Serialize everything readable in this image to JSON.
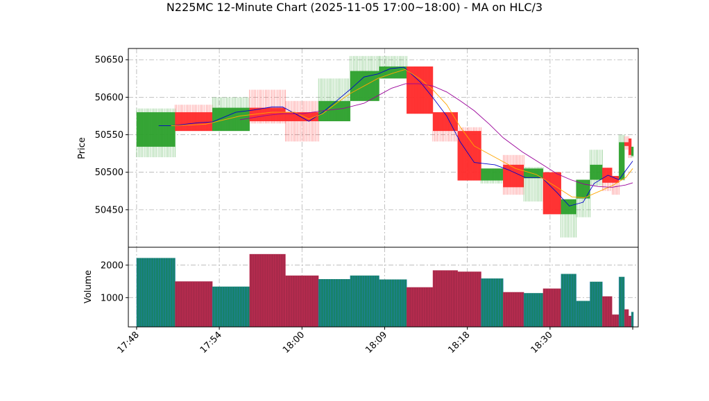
{
  "chart_data": {
    "type": "candlestick",
    "title": "N225MC 12-Minute Chart (2025-11-05 17:00~18:00) - MA on HLC/3",
    "price_axis": {
      "label": "Price",
      "ylim": [
        50400,
        50665
      ],
      "ticks": [
        50450,
        50500,
        50550,
        50600,
        50650
      ]
    },
    "volume_axis": {
      "label": "Volume",
      "ylim": [
        100,
        2550
      ],
      "ticks": [
        1000,
        2000
      ]
    },
    "x_axis": {
      "tick_labels": [
        "17:48",
        "17:54",
        "18:00",
        "18:09",
        "18:18",
        "18:30"
      ],
      "tick_positions": [
        0,
        6,
        12,
        18,
        24,
        30
      ],
      "xlim": [
        -0.6,
        36.4
      ]
    },
    "grid": true,
    "colors": {
      "up": "#2ca02c",
      "down": "#ff2a2a",
      "ma_fast": "#0000cc",
      "ma_mid": "#ffa500",
      "ma_slow": "#990099",
      "vol_up": "#17826a",
      "vol_down": "#a8294a"
    },
    "candles": [
      {
        "x": 0.0,
        "w": 2.8,
        "open": 50534,
        "close": 50580,
        "high": 50585,
        "low": 50520
      },
      {
        "x": 2.8,
        "w": 2.7,
        "open": 50580,
        "close": 50555,
        "high": 50590,
        "low": 50555
      },
      {
        "x": 5.5,
        "w": 2.7,
        "open": 50555,
        "close": 50586,
        "high": 50600,
        "low": 50555
      },
      {
        "x": 8.2,
        "w": 2.6,
        "open": 50586,
        "close": 50568,
        "high": 50610,
        "low": 50565
      },
      {
        "x": 10.8,
        "w": 2.4,
        "open": 50580,
        "close": 50568,
        "high": 50595,
        "low": 50541
      },
      {
        "x": 13.2,
        "w": 2.3,
        "open": 50568,
        "close": 50595,
        "high": 50625,
        "low": 50568
      },
      {
        "x": 15.5,
        "w": 2.1,
        "open": 50595,
        "close": 50635,
        "high": 50655,
        "low": 50595
      },
      {
        "x": 17.6,
        "w": 2.0,
        "open": 50625,
        "close": 50641,
        "high": 50655,
        "low": 50625
      },
      {
        "x": 19.6,
        "w": 1.9,
        "open": 50641,
        "close": 50578,
        "high": 50641,
        "low": 50578
      },
      {
        "x": 21.5,
        "w": 1.8,
        "open": 50580,
        "close": 50555,
        "high": 50580,
        "low": 50541
      },
      {
        "x": 23.3,
        "w": 1.7,
        "open": 50555,
        "close": 50489,
        "high": 50560,
        "low": 50489
      },
      {
        "x": 25.0,
        "w": 1.6,
        "open": 50489,
        "close": 50505,
        "high": 50505,
        "low": 50485
      },
      {
        "x": 26.6,
        "w": 1.5,
        "open": 50510,
        "close": 50480,
        "high": 50523,
        "low": 50470
      },
      {
        "x": 28.1,
        "w": 1.4,
        "open": 50492,
        "close": 50505,
        "high": 50507,
        "low": 50461
      },
      {
        "x": 29.5,
        "w": 1.3,
        "open": 50500,
        "close": 50444,
        "high": 50500,
        "low": 50444
      },
      {
        "x": 30.8,
        "w": 1.1,
        "open": 50444,
        "close": 50464,
        "high": 50464,
        "low": 50413
      },
      {
        "x": 31.9,
        "w": 1.0,
        "open": 50465,
        "close": 50490,
        "high": 50490,
        "low": 50440
      },
      {
        "x": 32.9,
        "w": 0.9,
        "open": 50490,
        "close": 50510,
        "high": 50530,
        "low": 50482
      },
      {
        "x": 33.8,
        "w": 0.7,
        "open": 50506,
        "close": 50486,
        "high": 50506,
        "low": 50475
      },
      {
        "x": 34.5,
        "w": 0.5,
        "open": 50495,
        "close": 50486,
        "high": 50495,
        "low": 50470
      },
      {
        "x": 35.0,
        "w": 0.4,
        "open": 50490,
        "close": 50540,
        "high": 50550,
        "low": 50489
      },
      {
        "x": 35.4,
        "w": 0.3,
        "open": 50540,
        "close": 50535,
        "high": 50548,
        "low": 50530
      },
      {
        "x": 35.7,
        "w": 0.2,
        "open": 50545,
        "close": 50523,
        "high": 50545,
        "low": 50519
      },
      {
        "x": 35.9,
        "w": 0.15,
        "open": 50522,
        "close": 50534,
        "high": 50534,
        "low": 50520
      }
    ],
    "volume": [
      2220,
      1500,
      1340,
      2340,
      1680,
      1570,
      1680,
      1560,
      1320,
      1840,
      1800,
      1590,
      1170,
      1140,
      1280,
      1730,
      900,
      1490,
      1040,
      480,
      1640,
      640,
      440,
      560
    ],
    "ma_series": [
      {
        "color": "#0000cc",
        "points": [
          [
            1.6,
            50562
          ],
          [
            2.5,
            50562
          ],
          [
            3.5,
            50564
          ],
          [
            4.5,
            50566
          ],
          [
            5.5,
            50567
          ],
          [
            7.2,
            50580
          ],
          [
            8.5,
            50583
          ],
          [
            9.8,
            50587
          ],
          [
            10.6,
            50587
          ],
          [
            11.5,
            50578
          ],
          [
            12.5,
            50568
          ],
          [
            13.5,
            50580
          ],
          [
            14.5,
            50595
          ],
          [
            15.6,
            50612
          ],
          [
            16.5,
            50627
          ],
          [
            17.5,
            50631
          ],
          [
            18.4,
            50638
          ],
          [
            19.4,
            50640
          ],
          [
            20.6,
            50620
          ],
          [
            21.6,
            50597
          ],
          [
            22.5,
            50575
          ],
          [
            23.5,
            50540
          ],
          [
            24.5,
            50513
          ],
          [
            26.0,
            50510
          ],
          [
            27.0,
            50503
          ],
          [
            28.2,
            50493
          ],
          [
            29.4,
            50493
          ],
          [
            30.5,
            50473
          ],
          [
            31.4,
            50455
          ],
          [
            32.4,
            50460
          ],
          [
            33.2,
            50485
          ],
          [
            34.2,
            50496
          ],
          [
            35.0,
            50490
          ],
          [
            35.6,
            50505
          ],
          [
            36.0,
            50515
          ]
        ]
      },
      {
        "color": "#ffa500",
        "points": [
          [
            2.5,
            50562
          ],
          [
            5.0,
            50564
          ],
          [
            7.5,
            50575
          ],
          [
            9.8,
            50580
          ],
          [
            11.5,
            50580
          ],
          [
            12.5,
            50571
          ],
          [
            13.5,
            50578
          ],
          [
            14.5,
            50592
          ],
          [
            15.5,
            50605
          ],
          [
            16.5,
            50615
          ],
          [
            17.5,
            50625
          ],
          [
            18.6,
            50632
          ],
          [
            19.5,
            50637
          ],
          [
            20.6,
            50624
          ],
          [
            21.5,
            50610
          ],
          [
            22.5,
            50590
          ],
          [
            23.5,
            50560
          ],
          [
            24.5,
            50535
          ],
          [
            26.0,
            50520
          ],
          [
            27.5,
            50505
          ],
          [
            29.0,
            50497
          ],
          [
            30.5,
            50480
          ],
          [
            31.6,
            50467
          ],
          [
            32.5,
            50466
          ],
          [
            33.5,
            50474
          ],
          [
            34.5,
            50482
          ],
          [
            35.5,
            50493
          ],
          [
            36.0,
            50505
          ]
        ]
      },
      {
        "color": "#990099",
        "points": [
          [
            7.5,
            50570
          ],
          [
            9.5,
            50576
          ],
          [
            10.6,
            50578
          ],
          [
            12.0,
            50578
          ],
          [
            13.5,
            50582
          ],
          [
            15.0,
            50585
          ],
          [
            16.5,
            50592
          ],
          [
            17.5,
            50602
          ],
          [
            18.5,
            50612
          ],
          [
            19.5,
            50618
          ],
          [
            20.5,
            50618
          ],
          [
            21.5,
            50615
          ],
          [
            22.5,
            50607
          ],
          [
            23.5,
            50595
          ],
          [
            24.5,
            50582
          ],
          [
            25.6,
            50564
          ],
          [
            26.6,
            50546
          ],
          [
            28.0,
            50527
          ],
          [
            29.3,
            50512
          ],
          [
            30.5,
            50498
          ],
          [
            31.5,
            50490
          ],
          [
            32.5,
            50484
          ],
          [
            33.5,
            50481
          ],
          [
            34.5,
            50480
          ],
          [
            35.5,
            50483
          ],
          [
            36.0,
            50486
          ]
        ]
      }
    ]
  }
}
